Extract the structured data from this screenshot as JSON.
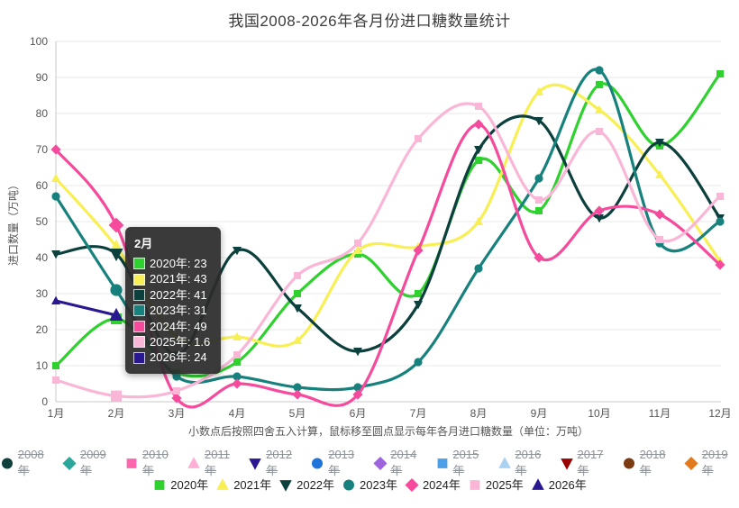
{
  "page": {
    "title": "我国2008-2026年各月份进口糖数量统计",
    "caption": "小数点后按照四舍五入计算，鼠标移至圆点显示每年各月进口糖数量（单位：万吨）"
  },
  "chart_data": {
    "type": "line",
    "title": "我国2008-2026年各月份进口糖数量统计",
    "xlabel": "",
    "ylabel": "进口数量（万吨）",
    "unit": "万吨",
    "x_categories": [
      "1月",
      "2月",
      "3月",
      "4月",
      "5月",
      "6月",
      "7月",
      "8月",
      "9月",
      "10月",
      "11月",
      "12月"
    ],
    "ylim": [
      0,
      100
    ],
    "y_tick_step": 10,
    "grid": "horizontal",
    "legend_position": "bottom",
    "highlighted_month": "2月",
    "series": [
      {
        "year": 2020,
        "name": "2020年",
        "color": "#2ed12e",
        "marker": "square",
        "values": [
          10,
          23,
          8,
          11,
          30,
          41,
          30,
          67,
          53,
          88,
          71,
          91
        ]
      },
      {
        "year": 2021,
        "name": "2021年",
        "color": "#f8ef55",
        "marker": "triangle",
        "values": [
          62,
          43,
          18,
          18,
          17,
          42,
          43,
          50,
          86,
          81,
          63,
          39
        ]
      },
      {
        "year": 2022,
        "name": "2022年",
        "color": "#0c403d",
        "marker": "triangle-down",
        "values": [
          41,
          41,
          13,
          42,
          26,
          14,
          27,
          70,
          78,
          51,
          72,
          51
        ]
      },
      {
        "year": 2023,
        "name": "2023年",
        "color": "#17817d",
        "marker": "circle",
        "values": [
          57,
          31,
          7,
          7,
          4,
          4,
          11,
          37,
          62,
          92,
          44,
          50
        ]
      },
      {
        "year": 2024,
        "name": "2024年",
        "color": "#f64a9c",
        "marker": "diamond",
        "values": [
          70,
          49,
          1,
          5,
          2,
          2,
          42,
          77,
          40,
          53,
          52,
          38
        ]
      },
      {
        "year": 2025,
        "name": "2025年",
        "color": "#f9b6d6",
        "marker": "square",
        "values": [
          6,
          1.6,
          3,
          13,
          35,
          44,
          73,
          82,
          56,
          75,
          45,
          57
        ]
      },
      {
        "year": 2026,
        "name": "2026年",
        "color": "#2a1892",
        "marker": "triangle",
        "values": [
          28,
          24
        ]
      }
    ],
    "hidden_series": [
      {
        "year": 2008,
        "name": "2008年",
        "color": "#0e3f3b",
        "marker": "circle"
      },
      {
        "year": 2009,
        "name": "2009年",
        "color": "#2aa79b",
        "marker": "diamond"
      },
      {
        "year": 2010,
        "name": "2010年",
        "color": "#ff66b0",
        "marker": "square"
      },
      {
        "year": 2011,
        "name": "2011年",
        "color": "#ffaed6",
        "marker": "triangle"
      },
      {
        "year": 2012,
        "name": "2012年",
        "color": "#2b1590",
        "marker": "triangle-down"
      },
      {
        "year": 2013,
        "name": "2013年",
        "color": "#1e74db",
        "marker": "circle"
      },
      {
        "year": 2014,
        "name": "2014年",
        "color": "#9d64dd",
        "marker": "diamond"
      },
      {
        "year": 2015,
        "name": "2015年",
        "color": "#4ba0e8",
        "marker": "square"
      },
      {
        "year": 2016,
        "name": "2016年",
        "color": "#a9d2f2",
        "marker": "triangle"
      },
      {
        "year": 2017,
        "name": "2017年",
        "color": "#990000",
        "marker": "triangle-down"
      },
      {
        "year": 2018,
        "name": "2018年",
        "color": "#7c3a10",
        "marker": "circle"
      },
      {
        "year": 2019,
        "name": "2019年",
        "color": "#e2791c",
        "marker": "diamond"
      }
    ]
  },
  "tooltip": {
    "title": "2月",
    "month_index": 1,
    "rows": [
      {
        "label": "2020年",
        "value": "23",
        "color": "#2ed12e"
      },
      {
        "label": "2021年",
        "value": "43",
        "color": "#f8ef55"
      },
      {
        "label": "2022年",
        "value": "41",
        "color": "#0c403d"
      },
      {
        "label": "2023年",
        "value": "31",
        "color": "#17817d"
      },
      {
        "label": "2024年",
        "value": "49",
        "color": "#f64a9c"
      },
      {
        "label": "2025年",
        "value": "1.6",
        "color": "#f9b6d6"
      },
      {
        "label": "2026年",
        "value": "24",
        "color": "#2a1892"
      }
    ]
  }
}
